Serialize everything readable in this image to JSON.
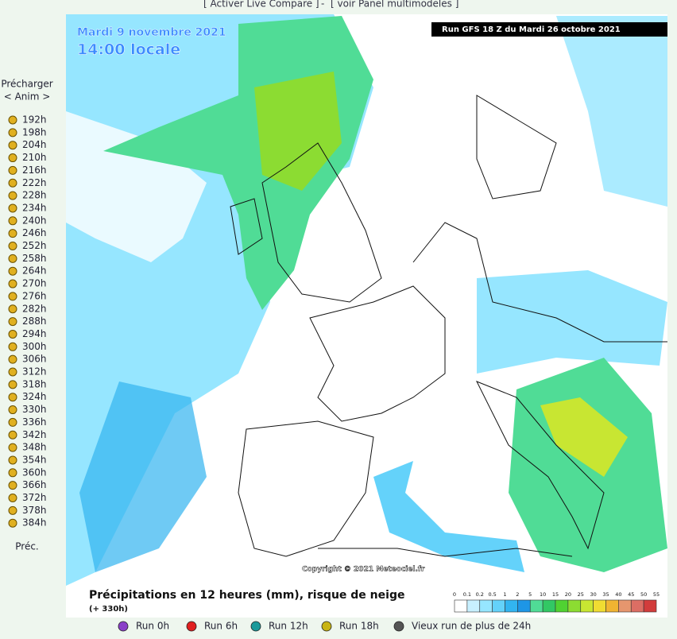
{
  "header": {
    "links": [
      "[ Activer Live Compare ]",
      "-",
      "[ voir Panel multimodeles ]"
    ]
  },
  "sidebar": {
    "preload": "Précharger",
    "anim": "< Anim >",
    "hours": [
      "192h",
      "198h",
      "204h",
      "210h",
      "216h",
      "222h",
      "228h",
      "234h",
      "240h",
      "246h",
      "252h",
      "258h",
      "264h",
      "270h",
      "276h",
      "282h",
      "288h",
      "294h",
      "300h",
      "306h",
      "312h",
      "318h",
      "324h",
      "330h",
      "336h",
      "342h",
      "348h",
      "354h",
      "360h",
      "366h",
      "372h",
      "378h",
      "384h"
    ],
    "footer": "Préc."
  },
  "map": {
    "date": "Mardi 9 novembre 2021",
    "time": "14:00 locale",
    "run": "Run GFS 18 Z du Mardi 26 octobre 2021",
    "copyright": "Copyright © 2021 Meteociel.fr"
  },
  "legend": {
    "title": "Précipitations en 12 heures (mm), risque de neige",
    "offset": "(+ 330h)",
    "scale": [
      "0",
      "0.1",
      "0.2",
      "0.5",
      "1",
      "2",
      "5",
      "10",
      "15",
      "20",
      "25",
      "30",
      "35",
      "40",
      "45",
      "50",
      "55"
    ],
    "colors": [
      "#ffffff",
      "#c8f0ff",
      "#96e6ff",
      "#64d2fa",
      "#32b4f0",
      "#1e96e6",
      "#50dc96",
      "#32c864",
      "#50d232",
      "#8cdc32",
      "#c8e632",
      "#f0dc32",
      "#f0b432",
      "#e6966e",
      "#dc6e64",
      "#d23c3c"
    ]
  },
  "runs": [
    {
      "label": "Run 0h",
      "color": "#8a3fc8"
    },
    {
      "label": "Run 6h",
      "color": "#e02020"
    },
    {
      "label": "Run 12h",
      "color": "#1a9a9a"
    },
    {
      "label": "Run 18h",
      "color": "#c8b414"
    },
    {
      "label": "Vieux run de plus de 24h",
      "color": "#555555"
    }
  ]
}
